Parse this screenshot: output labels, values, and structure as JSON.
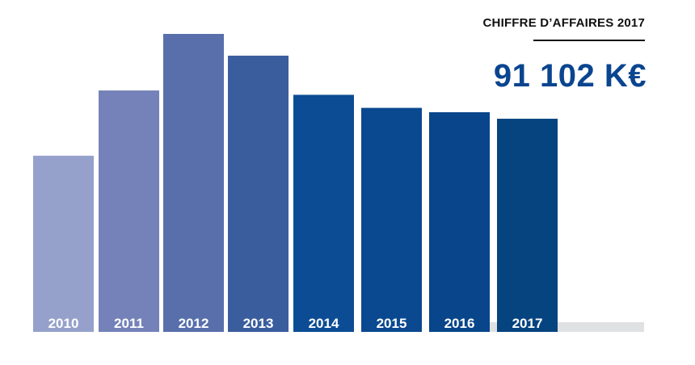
{
  "panel": {
    "title": "CHIFFRE D’AFFAIRES 2017",
    "value": "91 102 K€"
  },
  "chart_data": {
    "type": "bar",
    "title": "",
    "xlabel": "",
    "ylabel": "",
    "categories": [
      "2010",
      "2011",
      "2012",
      "2013",
      "2014",
      "2015",
      "2016",
      "2017"
    ],
    "values": [
      81,
      111,
      137,
      127,
      109,
      103,
      101,
      98
    ],
    "ylim": [
      0,
      137
    ],
    "grid": false,
    "colors": [
      "#95a1cb",
      "#7482b9",
      "#586fab",
      "#3a5d9e",
      "#0c4c94",
      "#0a4990",
      "#08458a",
      "#06447f"
    ],
    "baseline_color": "#e0e1e3"
  }
}
